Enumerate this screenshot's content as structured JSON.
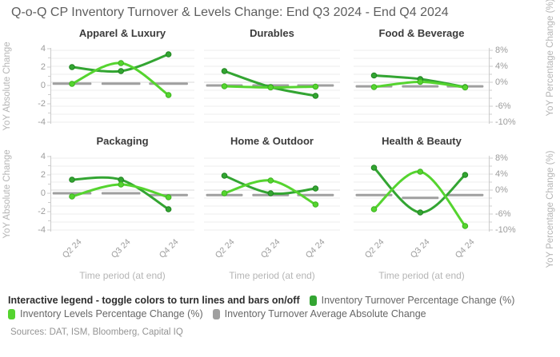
{
  "title": "Q-o-Q CP Inventory Turnover & Levels Change: End Q3 2024 - End Q4 2024",
  "colors": {
    "turnover": "#33a532",
    "turnover_marker_edge": "#1f831f",
    "levels": "#55d42f",
    "levels_marker_edge": "#3cb31f",
    "average": "#9f9f9f",
    "grid": "#ececec",
    "zero_line": "#dadada",
    "axis_line": "#cccccc"
  },
  "axes": {
    "left_title": "YoY Absolute Change",
    "right_title": "YoY Percentage Change (%)",
    "x_title": "Time period (at end)",
    "left_ticks": [
      "4",
      "2",
      "0",
      "-2",
      "-4"
    ],
    "right_ticks": [
      "8%",
      "4%",
      "0%",
      "-6%",
      "-10%"
    ],
    "x_ticks": [
      "Q2 24",
      "Q3 24",
      "Q4 24"
    ],
    "left_ylim": [
      -4,
      4
    ],
    "right_ylim_pct": [
      -10,
      8
    ]
  },
  "chart_data": [
    {
      "type": "line",
      "title": "Apparel & Luxury",
      "x": [
        "Q2 24",
        "Q3 24",
        "Q4 24"
      ],
      "series": [
        {
          "name": "Inventory Turnover Percentage Change (%)",
          "axis": "right",
          "values_pct": [
            3.8,
            2.8,
            7.0
          ]
        },
        {
          "name": "Inventory Levels Percentage Change (%)",
          "axis": "right",
          "values_pct": [
            -0.4,
            4.8,
            -3.2
          ]
        },
        {
          "name": "Inventory Turnover Average Absolute Change",
          "axis": "left",
          "values_abs": [
            0.2,
            0.2,
            0.2
          ]
        }
      ]
    },
    {
      "type": "line",
      "title": "Durables",
      "x": [
        "Q2 24",
        "Q3 24",
        "Q4 24"
      ],
      "series": [
        {
          "name": "Inventory Turnover Percentage Change (%)",
          "axis": "right",
          "values_pct": [
            2.8,
            -1.2,
            -3.4
          ]
        },
        {
          "name": "Inventory Levels Percentage Change (%)",
          "axis": "right",
          "values_pct": [
            -1.0,
            -1.3,
            -1.1
          ]
        },
        {
          "name": "Inventory Turnover Average Absolute Change",
          "axis": "left",
          "values_abs": [
            0.0,
            0.0,
            0.0
          ]
        }
      ]
    },
    {
      "type": "line",
      "title": "Food & Beverage",
      "x": [
        "Q2 24",
        "Q3 24",
        "Q4 24"
      ],
      "series": [
        {
          "name": "Inventory Turnover Percentage Change (%)",
          "axis": "right",
          "values_pct": [
            1.7,
            0.8,
            -1.2
          ]
        },
        {
          "name": "Inventory Levels Percentage Change (%)",
          "axis": "right",
          "values_pct": [
            -1.2,
            0.1,
            -1.3
          ]
        },
        {
          "name": "Inventory Turnover Average Absolute Change",
          "axis": "left",
          "values_abs": [
            -0.1,
            -0.1,
            -0.1
          ]
        }
      ]
    },
    {
      "type": "line",
      "title": "Packaging",
      "x": [
        "Q2 24",
        "Q3 24",
        "Q4 24"
      ],
      "series": [
        {
          "name": "Inventory Turnover Percentage Change (%)",
          "axis": "right",
          "values_pct": [
            2.6,
            2.6,
            -4.8
          ]
        },
        {
          "name": "Inventory Levels Percentage Change (%)",
          "axis": "right",
          "values_pct": [
            -1.6,
            1.4,
            -1.8
          ]
        },
        {
          "name": "Inventory Turnover Average Absolute Change",
          "axis": "left",
          "values_abs": [
            0.0,
            0.0,
            -0.2
          ]
        }
      ]
    },
    {
      "type": "line",
      "title": "Home & Outdoor",
      "x": [
        "Q2 24",
        "Q3 24",
        "Q4 24"
      ],
      "series": [
        {
          "name": "Inventory Turnover Percentage Change (%)",
          "axis": "right",
          "values_pct": [
            3.6,
            -0.8,
            0.4
          ]
        },
        {
          "name": "Inventory Levels Percentage Change (%)",
          "axis": "right",
          "values_pct": [
            -0.8,
            2.4,
            -3.6
          ]
        },
        {
          "name": "Inventory Turnover Average Absolute Change",
          "axis": "left",
          "values_abs": [
            -0.2,
            -0.2,
            -0.2
          ]
        }
      ]
    },
    {
      "type": "line",
      "title": "Health & Beauty",
      "x": [
        "Q2 24",
        "Q3 24",
        "Q4 24"
      ],
      "series": [
        {
          "name": "Inventory Turnover Percentage Change (%)",
          "axis": "right",
          "values_pct": [
            5.6,
            -5.6,
            3.8
          ]
        },
        {
          "name": "Inventory Levels Percentage Change (%)",
          "axis": "right",
          "values_pct": [
            -4.8,
            4.6,
            -9.0
          ]
        },
        {
          "name": "Inventory Turnover Average Absolute Change",
          "axis": "left",
          "values_abs": [
            -0.2,
            -0.5,
            -0.2
          ]
        }
      ]
    }
  ],
  "legend": {
    "note": "Interactive legend - toggle colors to turn lines and bars on/off",
    "items": [
      {
        "label": "Inventory Turnover Percentage Change (%)",
        "color": "#33a532"
      },
      {
        "label": "Inventory Levels Percentage Change (%)",
        "color": "#55d42f"
      },
      {
        "label": "Inventory Turnover Average Absolute Change",
        "color": "#9f9f9f"
      }
    ]
  },
  "sources": "Sources: DAT, ISM, Bloomberg, Capital IQ"
}
